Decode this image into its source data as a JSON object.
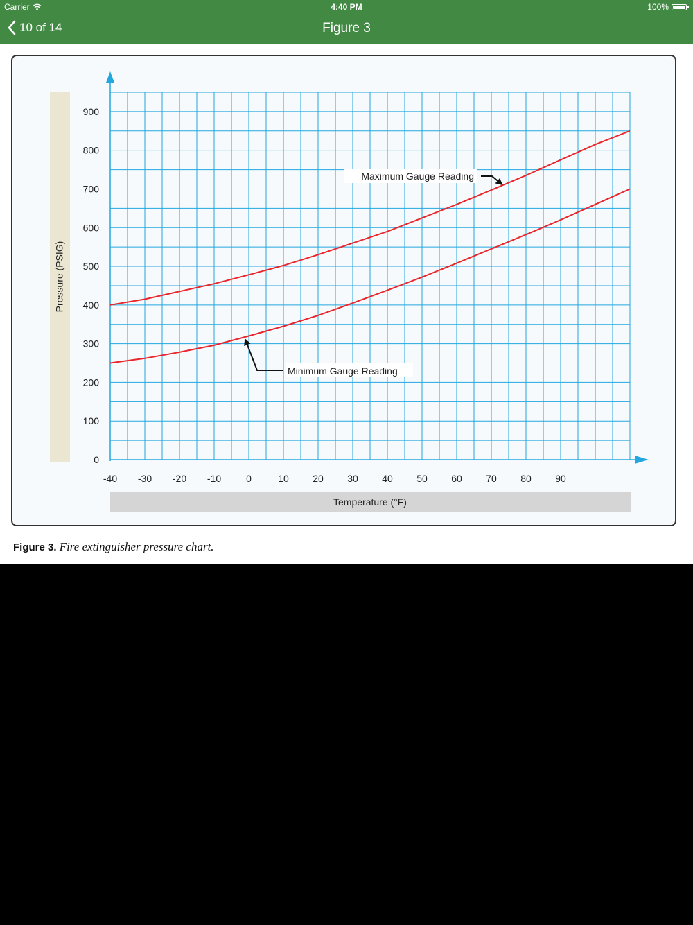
{
  "status_bar": {
    "carrier": "Carrier",
    "time": "4:40 PM",
    "battery": "100%"
  },
  "nav": {
    "back_label": "10 of 14",
    "title": "Figure 3"
  },
  "caption": {
    "label": "Figure 3.",
    "text": "Fire extinguisher pressure chart."
  },
  "colors": {
    "nav_bg": "#428a44",
    "grid": "#22a7e0",
    "curve": "#e8262b",
    "label_band": "#ebe6d2",
    "xlabel_band": "#d5d5d5"
  },
  "chart_data": {
    "type": "line",
    "title": "",
    "xlabel": "Temperature (°F)",
    "ylabel": "Pressure (PSIG)",
    "xlim": [
      -40,
      110
    ],
    "ylim": [
      0,
      950
    ],
    "x_ticks": [
      "-40",
      "-30",
      "-20",
      "-10",
      "0",
      "10",
      "20",
      "30",
      "40",
      "50",
      "60",
      "70",
      "80",
      "90"
    ],
    "y_ticks": [
      "0",
      "100",
      "200",
      "300",
      "400",
      "500",
      "600",
      "700",
      "800",
      "900"
    ],
    "grid": true,
    "series": [
      {
        "name": "Maximum Gauge Reading",
        "x": [
          -40,
          -30,
          -20,
          -10,
          0,
          10,
          20,
          30,
          40,
          50,
          60,
          70,
          80,
          90,
          100,
          110
        ],
        "y": [
          400,
          415,
          435,
          455,
          478,
          502,
          530,
          560,
          590,
          625,
          660,
          697,
          735,
          775,
          815,
          850
        ]
      },
      {
        "name": "Minimum Gauge Reading",
        "x": [
          -40,
          -30,
          -20,
          -10,
          0,
          10,
          20,
          30,
          40,
          50,
          60,
          70,
          80,
          90,
          100,
          110
        ],
        "y": [
          250,
          262,
          278,
          296,
          320,
          345,
          373,
          405,
          438,
          472,
          508,
          545,
          582,
          620,
          660,
          700
        ]
      }
    ],
    "annotations": [
      {
        "text": "Maximum Gauge Reading",
        "series": "Maximum Gauge Reading"
      },
      {
        "text": "Minimum Gauge Reading",
        "series": "Minimum Gauge Reading"
      }
    ]
  }
}
